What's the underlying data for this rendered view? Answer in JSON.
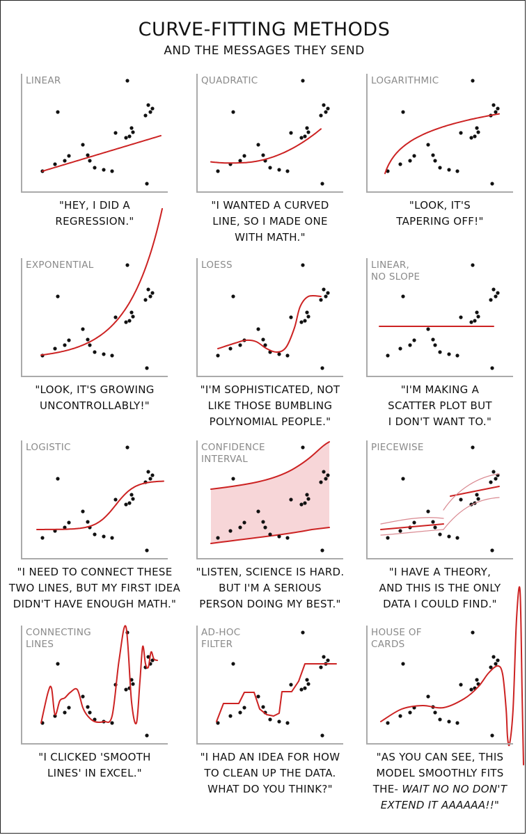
{
  "title": "CURVE-FITTING METHODS",
  "subtitle": "AND THE MESSAGES THEY SEND",
  "colors": {
    "fit": "#cc2222",
    "band": "#f7d6d8",
    "axis": "#aaaaaa",
    "point": "#111111"
  },
  "chart_data": [
    {
      "type": "scatter",
      "title": "LINEAR",
      "fit": "linear",
      "caption": "\"HEY, I DID A\nREGRESSION.\""
    },
    {
      "type": "scatter",
      "title": "QUADRATIC",
      "fit": "quadratic",
      "caption": "\"I WANTED A CURVED\nLINE, SO I MADE ONE\nWITH MATH.\""
    },
    {
      "type": "scatter",
      "title": "LOGARITHMIC",
      "fit": "logarithmic",
      "caption": "\"LOOK, IT'S\nTAPERING OFF!\""
    },
    {
      "type": "scatter",
      "title": "EXPONENTIAL",
      "fit": "exponential",
      "caption": "\"LOOK, IT'S GROWING\nUNCONTROLLABLY!\""
    },
    {
      "type": "scatter",
      "title": "LOESS",
      "fit": "loess",
      "caption": "\"I'M SOPHISTICATED, NOT\nLIKE THOSE BUMBLING\nPOLYNOMIAL PEOPLE.\""
    },
    {
      "type": "scatter",
      "title": "LINEAR,\nNO SLOPE",
      "fit": "flat",
      "caption": "\"I'M MAKING A\nSCATTER PLOT BUT\nI DON'T WANT TO.\""
    },
    {
      "type": "scatter",
      "title": "LOGISTIC",
      "fit": "logistic",
      "caption": "\"I NEED TO CONNECT THESE\nTWO LINES, BUT MY FIRST IDEA\nDIDN'T HAVE ENOUGH MATH.\""
    },
    {
      "type": "scatter",
      "title": "CONFIDENCE\nINTERVAL",
      "fit": "confidence",
      "caption": "\"LISTEN, SCIENCE IS HARD.\nBUT I'M A SERIOUS\nPERSON DOING MY BEST.\""
    },
    {
      "type": "scatter",
      "title": "PIECEWISE",
      "fit": "piecewise",
      "caption": "\"I HAVE A THEORY,\nAND THIS IS THE ONLY\nDATA I COULD FIND.\""
    },
    {
      "type": "scatter",
      "title": "CONNECTING\nLINES",
      "fit": "connect",
      "caption": "\"I CLICKED 'SMOOTH\nLINES' IN EXCEL.\""
    },
    {
      "type": "scatter",
      "title": "AD-HOC\nFILTER",
      "fit": "adhoc",
      "caption": "\"I HAD AN IDEA FOR HOW\nTO CLEAN UP THE DATA.\nWHAT DO YOU THINK?\""
    },
    {
      "type": "scatter",
      "title": "HOUSE OF\nCARDS",
      "fit": "houseofcards",
      "caption": "\"AS YOU CAN SEE, THIS\nMODEL SMOOTHLY FITS\nTHE-",
      "caption_shout": "WAIT NO NO DON'T\nEXTEND IT AAAAAA!!\""
    }
  ]
}
